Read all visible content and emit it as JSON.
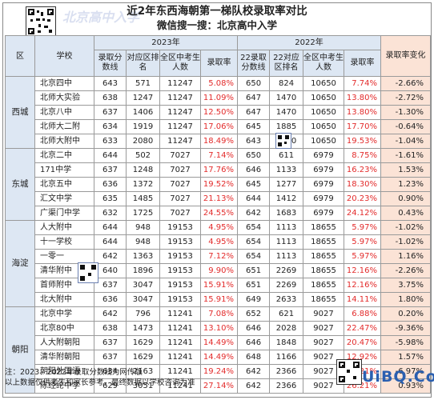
{
  "title": "近2年东西海朝第一梯队校录取率对比",
  "subtitle": "微信搜一搜：北京高中入学",
  "watermark": "北京高中入学",
  "logo": "UiBQ.CoM",
  "header": {
    "district": "区",
    "school": "学校",
    "year2023": "2023年",
    "year2022": "2022年",
    "change": "录取率变化",
    "cols2023": [
      "录取分数线",
      "对应区排名",
      "全区中考生人数",
      "录取率"
    ],
    "cols2022": [
      "22录取分数线",
      "22对应区排名",
      "全区中考生人数",
      "录取率"
    ]
  },
  "groups": [
    {
      "district": "西城",
      "rows": [
        {
          "school": "北京四中",
          "s23": "643",
          "r23": "571",
          "n23": "11247",
          "p23": "5.08%",
          "s22": "650",
          "r22": "824",
          "n22": "10650",
          "p22": "7.74%",
          "chg": "-2.66%"
        },
        {
          "school": "北师大实验",
          "s23": "638",
          "r23": "1247",
          "n23": "11247",
          "p23": "11.09%",
          "s22": "647",
          "r22": "1470",
          "n22": "10650",
          "p22": "13.80%",
          "chg": "-2.72%"
        },
        {
          "school": "北京八中",
          "s23": "637",
          "r23": "1406",
          "n23": "11247",
          "p23": "12.50%",
          "s22": "647",
          "r22": "1470",
          "n22": "10650",
          "p22": "13.80%",
          "chg": "-1.30%"
        },
        {
          "school": "北师大二附",
          "s23": "634",
          "r23": "1919",
          "n23": "11247",
          "p23": "17.06%",
          "s22": "645",
          "r22": "1885",
          "n22": "10650",
          "p22": "17.70%",
          "chg": "-0.64%"
        },
        {
          "school": "北师大附中",
          "s23": "633",
          "r23": "2080",
          "n23": "11247",
          "p23": "18.49%",
          "s22": "643",
          "r22": "2080",
          "n22": "10650",
          "p22": "19.53%",
          "chg": "-1.04%"
        }
      ]
    },
    {
      "district": "东城",
      "rows": [
        {
          "school": "北京二中",
          "s23": "644",
          "r23": "502",
          "n23": "7027",
          "p23": "7.14%",
          "s22": "650",
          "r22": "611",
          "n22": "6979",
          "p22": "8.75%",
          "chg": "-1.61%"
        },
        {
          "school": "171中学",
          "s23": "637",
          "r23": "1248",
          "n23": "7027",
          "p23": "17.76%",
          "s22": "646",
          "r22": "1133",
          "n22": "6979",
          "p22": "16.23%",
          "chg": "1.53%"
        },
        {
          "school": "北京五中",
          "s23": "636",
          "r23": "1372",
          "n23": "7027",
          "p23": "19.52%",
          "s22": "645",
          "r22": "1277",
          "n22": "6979",
          "p22": "18.30%",
          "chg": "1.23%"
        },
        {
          "school": "汇文中学",
          "s23": "635",
          "r23": "1485",
          "n23": "7027",
          "p23": "21.13%",
          "s22": "644",
          "r22": "1412",
          "n22": "6979",
          "p22": "20.23%",
          "chg": "0.90%"
        },
        {
          "school": "广渠门中学",
          "s23": "632",
          "r23": "1725",
          "n23": "7027",
          "p23": "24.55%",
          "s22": "642",
          "r22": "1683",
          "n22": "6979",
          "p22": "24.12%",
          "chg": "0.43%"
        }
      ]
    },
    {
      "district": "海淀",
      "rows": [
        {
          "school": "人大附中",
          "s23": "644",
          "r23": "948",
          "n23": "19153",
          "p23": "4.95%",
          "s22": "654",
          "r22": "1113",
          "n22": "18655",
          "p22": "5.97%",
          "chg": "-1.02%"
        },
        {
          "school": "十一学校",
          "s23": "644",
          "r23": "948",
          "n23": "19153",
          "p23": "4.95%",
          "s22": "654",
          "r22": "1113",
          "n22": "18655",
          "p22": "5.97%",
          "chg": "-1.02%"
        },
        {
          "school": "一零一",
          "s23": "642",
          "r23": "1363",
          "n23": "19153",
          "p23": "7.12%",
          "s22": "654",
          "r22": "1113",
          "n22": "18655",
          "p22": "5.97%",
          "chg": "1.16%"
        },
        {
          "school": "清华附中",
          "s23": "640",
          "r23": "1896",
          "n23": "19153",
          "p23": "9.90%",
          "s22": "651",
          "r22": "2269",
          "n22": "18655",
          "p22": "12.16%",
          "chg": "-2.26%"
        },
        {
          "school": "首师附中",
          "s23": "637",
          "r23": "3047",
          "n23": "19153",
          "p23": "15.91%",
          "s22": "651",
          "r22": "2269",
          "n22": "18655",
          "p22": "12.16%",
          "chg": "3.75%"
        },
        {
          "school": "北大附中",
          "s23": "636",
          "r23": "3047",
          "n23": "19153",
          "p23": "15.91%",
          "s22": "649",
          "r22": "2633",
          "n22": "18655",
          "p22": "14.11%",
          "chg": "1.80%"
        }
      ]
    },
    {
      "district": "朝阳",
      "rows": [
        {
          "school": "北京中学",
          "s23": "642",
          "r23": "796",
          "n23": "11241",
          "p23": "7.08%",
          "s22": "652",
          "r22": "621",
          "n22": "9027",
          "p22": "6.88%",
          "chg": "0.20%"
        },
        {
          "school": "北京80中",
          "s23": "638",
          "r23": "1473",
          "n23": "11241",
          "p23": "13.10%",
          "s22": "646",
          "r22": "2028",
          "n22": "9027",
          "p22": "22.47%",
          "chg": "-9.36%"
        },
        {
          "school": "人大附朝阳",
          "s23": "637",
          "r23": "1629",
          "n23": "11241",
          "p23": "14.49%",
          "s22": "646",
          "r22": "1848",
          "n22": "9027",
          "p22": "20.47%",
          "chg": "-5.98%"
        },
        {
          "school": "清华附朝阳",
          "s23": "637",
          "r23": "1629",
          "n23": "11241",
          "p23": "14.49%",
          "s22": "648",
          "r22": "1166",
          "n22": "9027",
          "p22": "12.92%",
          "chg": "1.57%"
        },
        {
          "school": "朝阳外国语",
          "s23": "634",
          "r23": "2163",
          "n23": "11241",
          "p23": "19.24%",
          "s22": "642",
          "r22": "2366",
          "n22": "9027",
          "p22": "26.21%",
          "chg": "-6.97%"
        },
        {
          "school": "陈经纶中学",
          "s23": "629",
          "r23": "3051",
          "n23": "11241",
          "p23": "27.14%",
          "s22": "642",
          "r22": "2366",
          "n22": "9027",
          "p22": "26.21%",
          "chg": "0.93%"
        }
      ]
    }
  ],
  "notes": [
    "注：2023、2022年录取分数线为网传版",
    "以上数据仅供考生和家长参考，最终数据以学校咨询为准"
  ]
}
